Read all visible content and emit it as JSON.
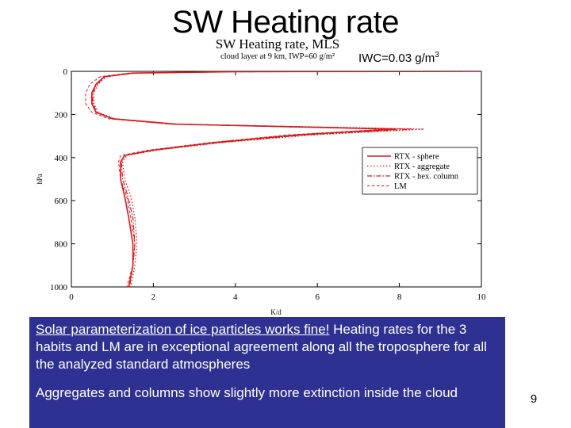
{
  "slide": {
    "title": "SW Heating rate",
    "iwc_note": "IWC=0.03 g/m",
    "iwc_note_exponent": "3",
    "page_number": "9"
  },
  "text_box": {
    "paragraph1_underlined": "Solar parameterization of ice particles works fine!",
    "paragraph1_rest": " Heating rates for the 3 habits and LM are in exceptional agreement along all the troposphere for all the analyzed standard atmospheres",
    "paragraph2": "Aggregates and columns show slightly more extinction inside the cloud"
  },
  "colors": {
    "series": "#d7191c",
    "text_box_bg": "#2e3192"
  },
  "chart_data": {
    "type": "line",
    "title": "SW Heating rate, MLS",
    "subtitle": "cloud layer at 9 km, IWP=60 g/m²",
    "xlabel": "K/d",
    "ylabel": "hPa",
    "xlim": [
      0,
      10
    ],
    "ylim": [
      1000,
      0
    ],
    "x_ticks": [
      "0",
      "2",
      "4",
      "6",
      "8",
      "10"
    ],
    "y_ticks": [
      "0",
      "200",
      "400",
      "600",
      "800",
      "1000"
    ],
    "legend_position": "right",
    "grid": false,
    "series": [
      {
        "name": "RTX - sphere",
        "style": "solid",
        "points": [
          [
            10,
            0
          ],
          [
            4,
            2
          ],
          [
            1.5,
            8
          ],
          [
            0.8,
            25
          ],
          [
            0.6,
            60
          ],
          [
            0.5,
            100
          ],
          [
            0.5,
            150
          ],
          [
            0.6,
            190
          ],
          [
            1.0,
            220
          ],
          [
            2.5,
            245
          ],
          [
            7.9,
            268
          ],
          [
            5.5,
            295
          ],
          [
            3.5,
            330
          ],
          [
            2.0,
            365
          ],
          [
            1.3,
            390
          ],
          [
            1.2,
            420
          ],
          [
            1.2,
            500
          ],
          [
            1.3,
            580
          ],
          [
            1.4,
            680
          ],
          [
            1.5,
            800
          ],
          [
            1.5,
            900
          ],
          [
            1.4,
            1000
          ]
        ]
      },
      {
        "name": "RTX - aggregate",
        "style": "dotted",
        "points": [
          [
            10,
            0
          ],
          [
            4,
            2
          ],
          [
            1.5,
            8
          ],
          [
            0.85,
            25
          ],
          [
            0.65,
            60
          ],
          [
            0.55,
            100
          ],
          [
            0.55,
            150
          ],
          [
            0.65,
            190
          ],
          [
            1.05,
            220
          ],
          [
            2.6,
            245
          ],
          [
            8.6,
            268
          ],
          [
            5.9,
            295
          ],
          [
            3.7,
            330
          ],
          [
            2.1,
            365
          ],
          [
            1.35,
            390
          ],
          [
            1.25,
            420
          ],
          [
            1.3,
            500
          ],
          [
            1.45,
            580
          ],
          [
            1.55,
            680
          ],
          [
            1.6,
            800
          ],
          [
            1.55,
            900
          ],
          [
            1.45,
            1000
          ]
        ]
      },
      {
        "name": "RTX - hex. column",
        "style": "dashdot",
        "points": [
          [
            10,
            0
          ],
          [
            4,
            2
          ],
          [
            1.5,
            8
          ],
          [
            0.82,
            25
          ],
          [
            0.62,
            60
          ],
          [
            0.52,
            100
          ],
          [
            0.52,
            150
          ],
          [
            0.62,
            190
          ],
          [
            1.02,
            220
          ],
          [
            2.55,
            245
          ],
          [
            8.3,
            268
          ],
          [
            5.7,
            295
          ],
          [
            3.6,
            330
          ],
          [
            2.05,
            365
          ],
          [
            1.3,
            390
          ],
          [
            1.22,
            420
          ],
          [
            1.25,
            500
          ],
          [
            1.38,
            580
          ],
          [
            1.5,
            680
          ],
          [
            1.55,
            800
          ],
          [
            1.5,
            900
          ],
          [
            1.42,
            1000
          ]
        ]
      },
      {
        "name": "LM",
        "style": "dashed",
        "points": [
          [
            10,
            0
          ],
          [
            4,
            2
          ],
          [
            1.4,
            8
          ],
          [
            0.7,
            25
          ],
          [
            0.45,
            60
          ],
          [
            0.35,
            100
          ],
          [
            0.35,
            150
          ],
          [
            0.5,
            190
          ],
          [
            0.9,
            220
          ],
          [
            2.4,
            245
          ],
          [
            7.7,
            268
          ],
          [
            5.3,
            295
          ],
          [
            3.4,
            330
          ],
          [
            1.9,
            365
          ],
          [
            1.2,
            390
          ],
          [
            1.15,
            420
          ],
          [
            1.2,
            500
          ],
          [
            1.35,
            580
          ],
          [
            1.45,
            680
          ],
          [
            1.55,
            800
          ],
          [
            1.5,
            900
          ],
          [
            1.35,
            1000
          ]
        ]
      }
    ]
  }
}
